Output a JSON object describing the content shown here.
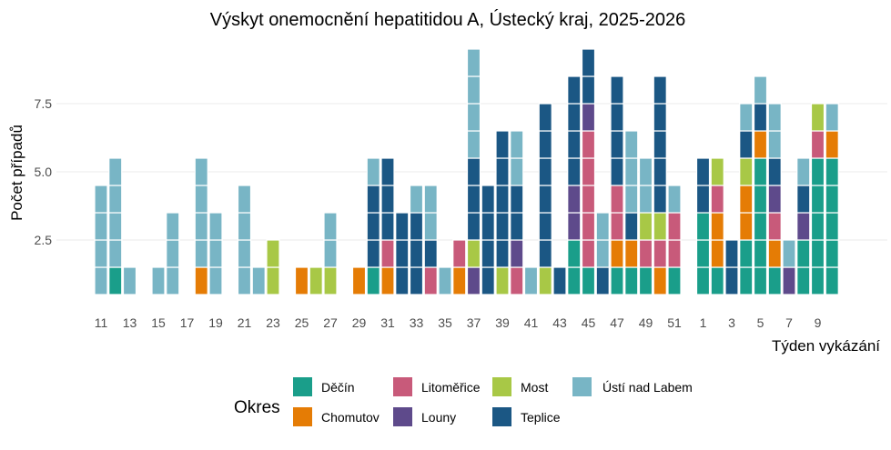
{
  "chart_data": {
    "type": "bar",
    "stacked": true,
    "title": "Výskyt onemocnění hepatitidou A, Ústecký kraj, 2025-2026",
    "xlabel": "Týden vykázání",
    "ylabel": "Počet případů",
    "y_ticks": [
      "2.5",
      "5.0",
      "7.5"
    ],
    "y_tick_values": [
      2.5,
      5.0,
      7.5
    ],
    "ylim": [
      0.5,
      9.5
    ],
    "grid": "horizontal major",
    "categories": [
      11,
      12,
      13,
      14,
      15,
      16,
      17,
      18,
      19,
      20,
      21,
      22,
      23,
      24,
      25,
      26,
      27,
      28,
      29,
      30,
      31,
      32,
      33,
      34,
      35,
      36,
      37,
      38,
      39,
      40,
      41,
      42,
      43,
      44,
      45,
      46,
      47,
      48,
      49,
      50,
      51,
      52,
      1,
      2,
      3,
      4,
      5,
      6,
      7,
      8,
      9,
      10
    ],
    "x_tick_labels": [
      "11",
      "13",
      "15",
      "17",
      "19",
      "21",
      "23",
      "25",
      "27",
      "29",
      "31",
      "33",
      "35",
      "37",
      "39",
      "41",
      "43",
      "45",
      "47",
      "49",
      "51",
      "1",
      "3",
      "5",
      "7",
      "9"
    ],
    "legend": {
      "title": "Okres",
      "placement": "bottom"
    },
    "series": [
      {
        "name": "Děčín",
        "color": "#1a9e8a",
        "values": [
          0,
          1,
          0,
          0,
          0,
          0,
          0,
          0,
          0,
          0,
          0,
          0,
          0,
          0,
          0,
          0,
          0,
          0,
          0,
          1,
          0,
          0,
          0,
          0,
          0,
          0,
          0,
          0,
          0,
          0,
          0,
          0,
          0,
          2,
          1,
          0,
          1,
          1,
          1,
          0,
          1,
          0,
          3,
          1,
          0,
          2,
          5,
          1,
          0,
          2,
          5,
          5
        ]
      },
      {
        "name": "Chomutov",
        "color": "#e57c05",
        "values": [
          0,
          0,
          0,
          0,
          0,
          0,
          0,
          1,
          0,
          0,
          0,
          0,
          0,
          0,
          1,
          0,
          0,
          0,
          1,
          0,
          1,
          0,
          0,
          0,
          0,
          1,
          0,
          0,
          0,
          0,
          0,
          0,
          0,
          0,
          0,
          0,
          1,
          1,
          0,
          1,
          0,
          0,
          0,
          2,
          0,
          2,
          1,
          1,
          0,
          0,
          0,
          1
        ]
      },
      {
        "name": "Litoměřice",
        "color": "#c85a7a",
        "values": [
          0,
          0,
          0,
          0,
          0,
          0,
          0,
          0,
          0,
          0,
          0,
          0,
          0,
          0,
          0,
          0,
          0,
          0,
          0,
          0,
          1,
          0,
          0,
          1,
          0,
          1,
          0,
          0,
          0,
          1,
          0,
          0,
          0,
          0,
          5,
          0,
          2,
          0,
          1,
          1,
          2,
          0,
          0,
          1,
          0,
          0,
          0,
          1,
          0,
          0,
          1,
          0
        ]
      },
      {
        "name": "Louny",
        "color": "#5e4a8b",
        "values": [
          0,
          0,
          0,
          0,
          0,
          0,
          0,
          0,
          0,
          0,
          0,
          0,
          0,
          0,
          0,
          0,
          0,
          0,
          0,
          0,
          0,
          0,
          0,
          0,
          0,
          0,
          1,
          0,
          0,
          1,
          0,
          0,
          0,
          2,
          1,
          0,
          0,
          0,
          0,
          0,
          0,
          0,
          0,
          0,
          0,
          0,
          0,
          1,
          1,
          1,
          0,
          0
        ]
      },
      {
        "name": "Most",
        "color": "#a8c846",
        "values": [
          0,
          0,
          0,
          0,
          0,
          0,
          0,
          0,
          0,
          0,
          0,
          0,
          2,
          0,
          0,
          1,
          1,
          0,
          0,
          0,
          0,
          0,
          0,
          0,
          0,
          0,
          1,
          0,
          1,
          0,
          0,
          1,
          0,
          0,
          0,
          0,
          0,
          0,
          1,
          1,
          0,
          0,
          0,
          1,
          0,
          1,
          0,
          0,
          0,
          0,
          1,
          0
        ]
      },
      {
        "name": "Teplice",
        "color": "#1b5784",
        "values": [
          0,
          0,
          0,
          0,
          0,
          0,
          0,
          0,
          0,
          0,
          0,
          0,
          0,
          0,
          0,
          0,
          0,
          0,
          0,
          3,
          3,
          3,
          3,
          1,
          0,
          0,
          3,
          4,
          5,
          2,
          0,
          6,
          1,
          4,
          2,
          1,
          4,
          1,
          0,
          5,
          0,
          0,
          2,
          0,
          2,
          1,
          1,
          1,
          0,
          1,
          0,
          0
        ]
      },
      {
        "name": "Ústí nad Labem",
        "color": "#78b5c5",
        "values": [
          4,
          4,
          1,
          0,
          1,
          3,
          0,
          4,
          3,
          0,
          4,
          1,
          0,
          0,
          0,
          0,
          2,
          0,
          0,
          1,
          0,
          0,
          1,
          2,
          1,
          0,
          4,
          0,
          0,
          2,
          1,
          0,
          0,
          0,
          0,
          2,
          0,
          3,
          2,
          0,
          1,
          0,
          0,
          0,
          0,
          1,
          1,
          2,
          1,
          1,
          0,
          1
        ]
      }
    ]
  }
}
